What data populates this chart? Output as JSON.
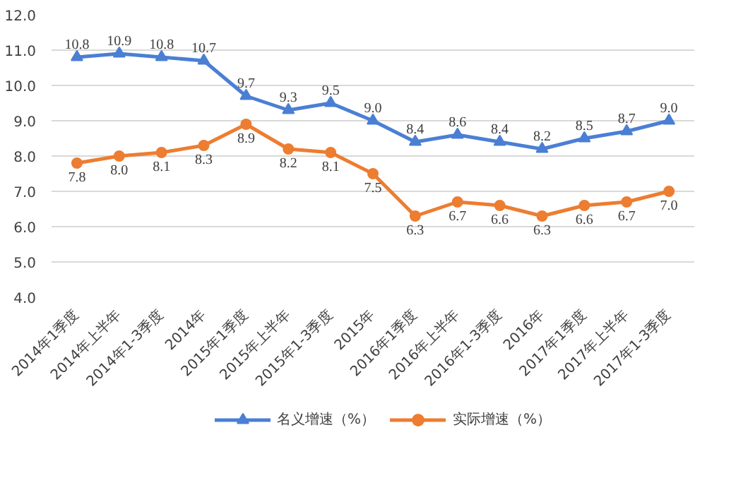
{
  "chart_data": {
    "type": "line",
    "categories": [
      "2014年1季度",
      "2014年上半年",
      "2014年1-3季度",
      "2014年",
      "2015年1季度",
      "2015年上半年",
      "2015年1-3季度",
      "2015年",
      "2016年1季度",
      "2016年上半年",
      "2016年1-3季度",
      "2016年",
      "2017年1季度",
      "2017年上半年",
      "2017年1-3季度"
    ],
    "series": [
      {
        "name": "名义增速（%）",
        "color": "#4a7fd4",
        "marker": "triangle",
        "values": [
          10.8,
          10.9,
          10.8,
          10.7,
          9.7,
          9.3,
          9.5,
          9.0,
          8.4,
          8.6,
          8.4,
          8.2,
          8.5,
          8.7,
          9.0
        ],
        "value_labels": [
          "10.8",
          "10.9",
          "10.8",
          "10.7",
          "9.7",
          "9.3",
          "9.5",
          "9.0",
          "8.4",
          "8.6",
          "8.4",
          "8.2",
          "8.5",
          "8.7",
          "9.0"
        ]
      },
      {
        "name": "实际增速（%）",
        "color": "#ed7d31",
        "marker": "circle",
        "values": [
          7.8,
          8.0,
          8.1,
          8.3,
          8.9,
          8.2,
          8.1,
          7.5,
          6.3,
          6.7,
          6.6,
          6.3,
          6.6,
          6.7,
          7.0
        ],
        "value_labels": [
          "7.8",
          "8.0",
          "8.1",
          "8.3",
          "8.9",
          "8.2",
          "8.1",
          "7.5",
          "6.3",
          "6.7",
          "6.6",
          "6.3",
          "6.6",
          "6.7",
          "7.0"
        ]
      }
    ],
    "ylim": [
      4,
      12
    ],
    "yticks": [
      {
        "value": 4,
        "label": "4.0"
      },
      {
        "value": 5,
        "label": "5.0"
      },
      {
        "value": 6,
        "label": "6.0"
      },
      {
        "value": 7,
        "label": "7.0"
      },
      {
        "value": 8,
        "label": "8.0"
      },
      {
        "value": 9,
        "label": "9.0"
      },
      {
        "value": 10,
        "label": "10.0"
      },
      {
        "value": 11,
        "label": "11.0"
      },
      {
        "value": 12,
        "label": "12.0"
      }
    ],
    "grid": "y",
    "legend": "bottom",
    "line_style": "solid"
  }
}
